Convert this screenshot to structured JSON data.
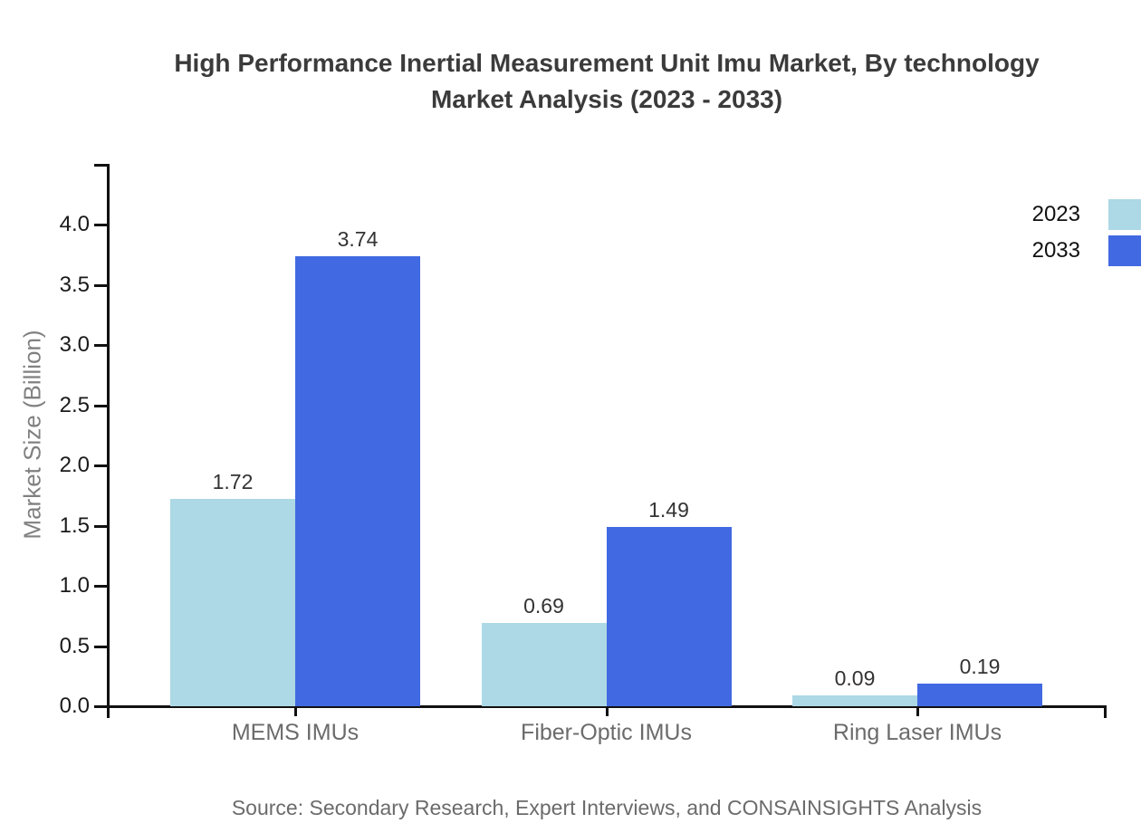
{
  "title": {
    "line1": "High Performance Inertial Measurement Unit Imu Market, By technology",
    "line2": "Market Analysis (2023 - 2033)"
  },
  "source": "Source: Secondary Research, Expert Interviews, and CONSAINSIGHTS Analysis",
  "chart_data": {
    "type": "bar",
    "title": "High Performance Inertial Measurement Unit Imu Market, By technology Market Analysis (2023 - 2033)",
    "categories": [
      "MEMS IMUs",
      "Fiber-Optic IMUs",
      "Ring Laser IMUs"
    ],
    "series": [
      {
        "name": "2023",
        "color": "#ADD8E6",
        "values": [
          1.72,
          0.69,
          0.09
        ]
      },
      {
        "name": "2033",
        "color": "#4169E1",
        "values": [
          3.74,
          1.49,
          0.19
        ]
      }
    ],
    "xlabel": "",
    "ylabel": "Market Size (Billion)",
    "ylim": [
      0,
      4.5
    ],
    "yticks": [
      0.0,
      0.5,
      1.0,
      1.5,
      2.0,
      2.5,
      3.0,
      3.5,
      4.0
    ],
    "grid": false,
    "legend_position": "top-right",
    "value_labels": true,
    "value_label_format": "2-decimals"
  }
}
